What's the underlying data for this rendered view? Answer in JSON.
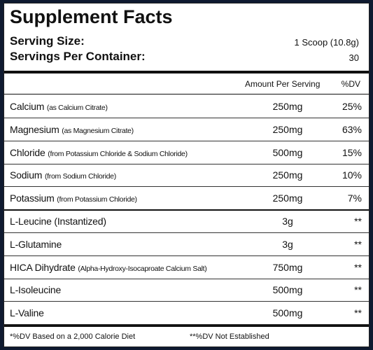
{
  "header": {
    "title": "Supplement Facts",
    "serving_size_label": "Serving Size:",
    "serving_size_value": "1 Scoop (10.8g)",
    "servings_label": "Servings Per Container:",
    "servings_value": "30"
  },
  "table": {
    "columns": [
      "Amount Per Serving",
      "%DV"
    ],
    "rows": [
      {
        "name": "Calcium",
        "note": "(as Calcium Citrate)",
        "amount": "250mg",
        "dv": "25%"
      },
      {
        "name": "Magnesium",
        "note": "(as Magnesium Citrate)",
        "amount": "250mg",
        "dv": "63%"
      },
      {
        "name": "Chloride",
        "note": "(from Potassium Chloride & Sodium Chloride)",
        "amount": "500mg",
        "dv": "15%"
      },
      {
        "name": "Sodium",
        "note": "(from Sodium Chloride)",
        "amount": "250mg",
        "dv": "10%"
      },
      {
        "name": "Potassium",
        "note": "(from Potassium Chloride)",
        "amount": "250mg",
        "dv": "7%"
      },
      {
        "name": "L-Leucine (Instantized)",
        "amount": "3g",
        "dv": "**"
      },
      {
        "name": "L-Glutamine",
        "amount": "3g",
        "dv": "**"
      },
      {
        "name": "HICA Dihydrate",
        "note": "(Alpha-Hydroxy-Isocaproate Calcium Salt)",
        "amount": "750mg",
        "dv": "**"
      },
      {
        "name": "L-Isoleucine",
        "amount": "500mg",
        "dv": "**"
      },
      {
        "name": "L-Valine",
        "amount": "500mg",
        "dv": "**"
      }
    ]
  },
  "footer": {
    "note_1": "*%DV Based on a 2,000 Calorie Diet",
    "note_2": "**%DV Not Established"
  }
}
